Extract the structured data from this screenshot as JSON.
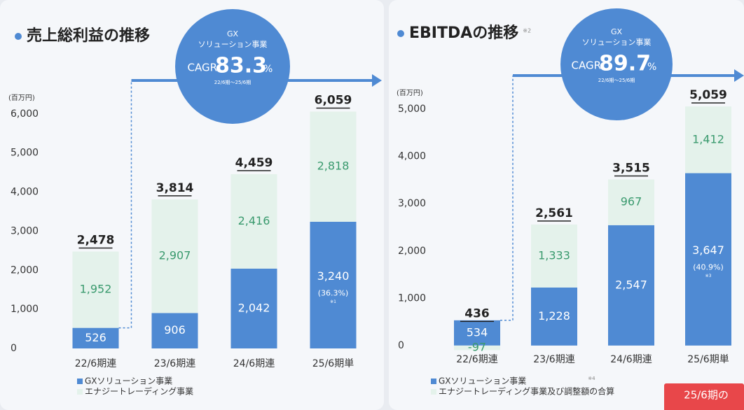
{
  "chart_data": [
    {
      "type": "bar",
      "stacked": true,
      "title": "売上総利益の推移",
      "unit_label": "(百万円)",
      "categories": [
        "22/6期連",
        "23/6期連",
        "24/6期連",
        "25/6期単"
      ],
      "series": [
        {
          "name": "GXソリューション事業",
          "color": "#4f8ad3",
          "values": [
            526,
            906,
            2042,
            3240
          ],
          "value_labels": [
            "526",
            "906",
            "2,042",
            "3,240"
          ]
        },
        {
          "name": "エナジートレーディング事業",
          "color": "#e4f2eb",
          "values": [
            1952,
            2907,
            2416,
            2818
          ],
          "value_labels": [
            "1,952",
            "2,907",
            "2,416",
            "2,818"
          ]
        }
      ],
      "totals": [
        2478,
        3814,
        4459,
        6059
      ],
      "total_labels": [
        "2,478",
        "3,814",
        "4,459",
        "6,059"
      ],
      "share_label": "(36.3%)",
      "share_note": "※1",
      "bubble": {
        "segment": "GX",
        "segment_name": "ソリューション事業",
        "metric": "CAGR",
        "value": 83.3,
        "unit": "%",
        "period": "22/6期～25/6期"
      },
      "ylim": [
        0,
        6300
      ],
      "yticks": [
        0,
        {
          "value": 1000,
          "label": "1,000"
        },
        {
          "value": 2000,
          "label": "2,000"
        },
        {
          "value": 3000,
          "label": "3,000"
        },
        {
          "value": 4000,
          "label": "4,000"
        },
        {
          "value": 5000,
          "label": "5,000"
        },
        {
          "value": 6000,
          "label": "6,000"
        }
      ]
    },
    {
      "type": "bar",
      "stacked": true,
      "title": "EBITDAの推移",
      "title_note": "※2",
      "unit_label": "(百万円)",
      "categories": [
        "22/6期連",
        "23/6期連",
        "24/6期連",
        "25/6期単"
      ],
      "series": [
        {
          "name": "GXソリューション事業",
          "color": "#4f8ad3",
          "values": [
            534,
            1228,
            2547,
            3647
          ],
          "value_labels": [
            "534",
            "1,228",
            "2,547",
            "3,647"
          ]
        },
        {
          "name": "エナジートレーディング事業及び調整額の合算",
          "color": "#e4f2eb",
          "values": [
            -97,
            1333,
            967,
            1412
          ],
          "value_labels": [
            "-97",
            "1,333",
            "967",
            "1,412"
          ]
        }
      ],
      "totals": [
        436,
        2561,
        3515,
        5059
      ],
      "total_labels": [
        "436",
        "2,561",
        "3,515",
        "5,059"
      ],
      "share_label": "(40.9%)",
      "share_note": "※3",
      "legend_note": "※4",
      "bubble": {
        "segment": "GX",
        "segment_name": "ソリューション事業",
        "metric": "CAGR",
        "value": 89.7,
        "unit": "%",
        "period": "22/6期～25/6期"
      },
      "callout": "25/6期の",
      "ylim": [
        -150,
        5150
      ],
      "yticks": [
        0,
        {
          "value": 1000,
          "label": "1,000"
        },
        {
          "value": 2000,
          "label": "2,000"
        },
        {
          "value": 3000,
          "label": "3,000"
        },
        {
          "value": 4000,
          "label": "4,000"
        },
        {
          "value": 5000,
          "label": "5,000"
        }
      ]
    }
  ]
}
